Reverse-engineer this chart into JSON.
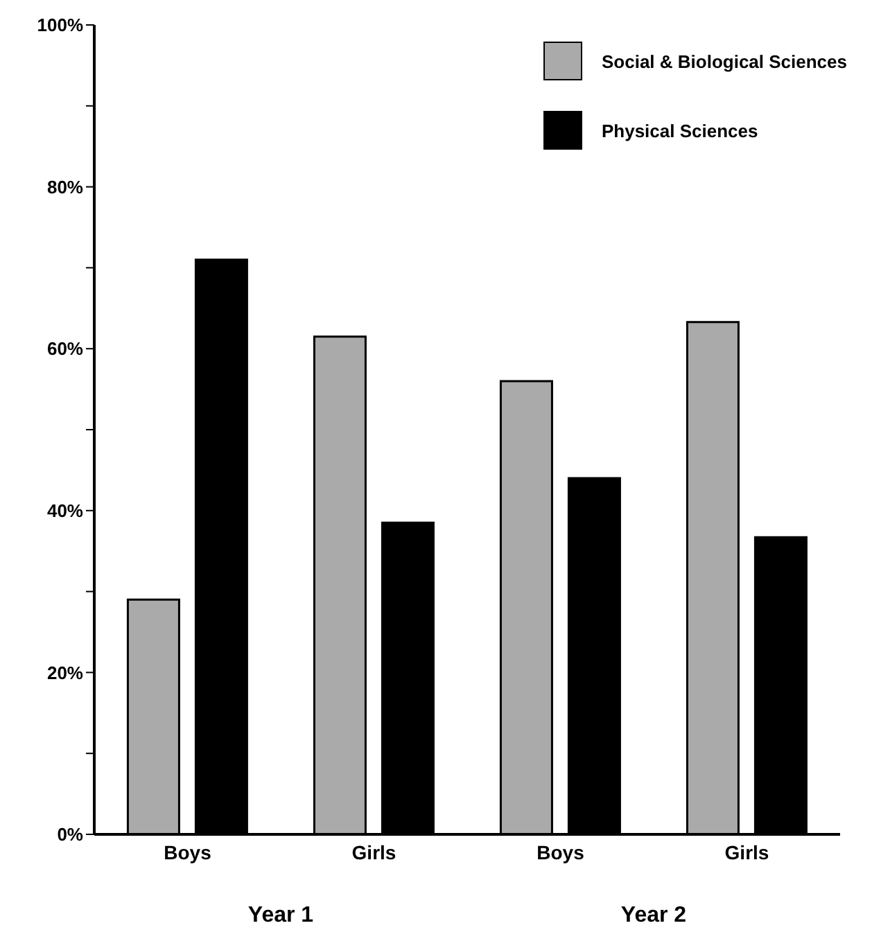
{
  "chart_data": {
    "type": "bar",
    "categories": [
      "Boys",
      "Girls",
      "Boys",
      "Girls"
    ],
    "series": [
      {
        "name": "Social & Biological Sciences",
        "color": "#aaaaaa",
        "values": [
          29,
          61.5,
          56,
          63.3
        ]
      },
      {
        "name": "Physical Sciences",
        "color": "#000000",
        "values": [
          71,
          38.5,
          44,
          36.7
        ]
      }
    ],
    "ylim": [
      0,
      100
    ],
    "yticks": [
      {
        "value": 0,
        "label": "0%"
      },
      {
        "value": 10,
        "label": null
      },
      {
        "value": 20,
        "label": "20%"
      },
      {
        "value": 30,
        "label": null
      },
      {
        "value": 40,
        "label": "40%"
      },
      {
        "value": 50,
        "label": null
      },
      {
        "value": 60,
        "label": "60%"
      },
      {
        "value": 70,
        "label": null
      },
      {
        "value": 80,
        "label": "80%"
      },
      {
        "value": 90,
        "label": null
      },
      {
        "value": 100,
        "label": "100%"
      }
    ],
    "annotations": [
      "Year 1",
      "Year 2"
    ],
    "legend": "top right",
    "grid": false
  }
}
